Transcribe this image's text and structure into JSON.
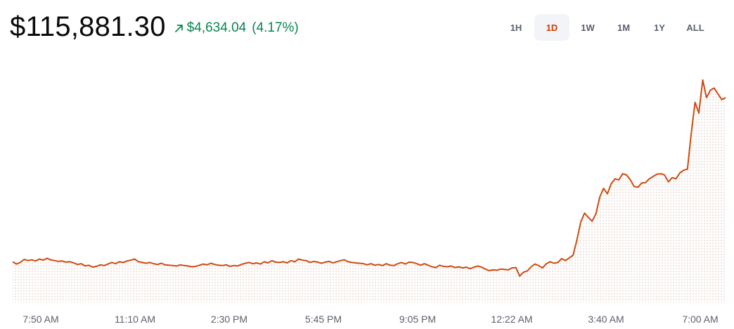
{
  "header": {
    "price": "$115,881.30",
    "change_amount": "$4,634.04",
    "change_percent": "(4.17%)",
    "change_direction": "up"
  },
  "ranges": [
    {
      "label": "1H",
      "active": false
    },
    {
      "label": "1D",
      "active": true
    },
    {
      "label": "1W",
      "active": false
    },
    {
      "label": "1M",
      "active": false
    },
    {
      "label": "1Y",
      "active": false
    },
    {
      "label": "ALL",
      "active": false
    }
  ],
  "colors": {
    "line": "#cf4a10",
    "positive": "#098551",
    "active_range": "#cf3f00",
    "dot_fill": "#e8d8cf"
  },
  "chart_data": {
    "type": "area",
    "title": "",
    "xlabel": "",
    "ylabel": "",
    "x_tick_labels": [
      "7:50 AM",
      "11:10 AM",
      "2:30 PM",
      "5:45 PM",
      "9:05 PM",
      "12:22 AM",
      "3:40 AM",
      "7:00 AM"
    ],
    "ylim": [
      110300,
      116200
    ],
    "grid": false,
    "series": [
      {
        "values": [
          111350,
          111290,
          111330,
          111410,
          111380,
          111400,
          111370,
          111420,
          111390,
          111440,
          111400,
          111380,
          111360,
          111370,
          111340,
          111350,
          111320,
          111280,
          111300,
          111240,
          111260,
          111210,
          111230,
          111270,
          111250,
          111290,
          111330,
          111300,
          111350,
          111330,
          111370,
          111390,
          111420,
          111350,
          111330,
          111310,
          111330,
          111300,
          111280,
          111310,
          111270,
          111260,
          111250,
          111240,
          111270,
          111250,
          111240,
          111220,
          111230,
          111260,
          111290,
          111270,
          111310,
          111280,
          111260,
          111250,
          111270,
          111230,
          111250,
          111240,
          111280,
          111310,
          111330,
          111300,
          111320,
          111290,
          111350,
          111320,
          111380,
          111340,
          111330,
          111350,
          111320,
          111380,
          111350,
          111420,
          111390,
          111380,
          111330,
          111360,
          111340,
          111310,
          111340,
          111360,
          111320,
          111350,
          111380,
          111400,
          111350,
          111330,
          111320,
          111310,
          111300,
          111270,
          111300,
          111260,
          111280,
          111250,
          111300,
          111260,
          111250,
          111300,
          111330,
          111290,
          111340,
          111330,
          111300,
          111260,
          111300,
          111260,
          111220,
          111200,
          111260,
          111230,
          111220,
          111240,
          111200,
          111220,
          111190,
          111210,
          111170,
          111210,
          111240,
          111210,
          111160,
          111120,
          111140,
          111130,
          111160,
          111150,
          111140,
          111190,
          111200,
          110980,
          111080,
          111110,
          111220,
          111290,
          111250,
          111190,
          111300,
          111350,
          111310,
          111330,
          111430,
          111380,
          111450,
          111520,
          111910,
          112370,
          112610,
          112500,
          112400,
          112590,
          113030,
          113250,
          113110,
          113370,
          113500,
          113470,
          113630,
          113600,
          113480,
          113300,
          113280,
          113390,
          113400,
          113500,
          113560,
          113620,
          113630,
          113600,
          113420,
          113530,
          113500,
          113650,
          113720,
          113750,
          114680,
          115480,
          115200,
          116060,
          115600,
          115790,
          115850,
          115700,
          115550,
          115600
        ]
      }
    ]
  }
}
